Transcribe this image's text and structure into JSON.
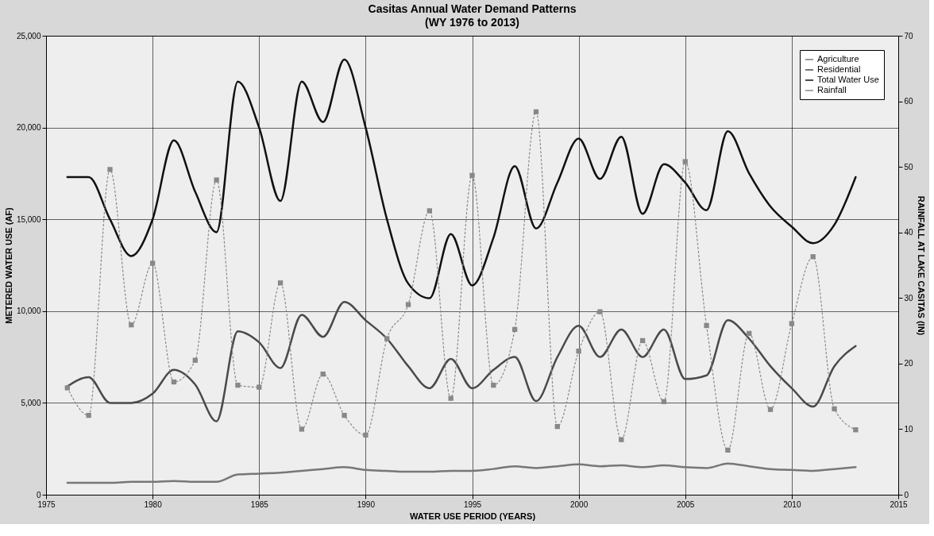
{
  "chart_data": {
    "type": "line",
    "title": "Casitas Annual Water Demand Patterns",
    "subtitle": "(WY 1976 to 2013)",
    "xlabel": "WATER USE PERIOD (YEARS)",
    "ylabel": "METERED WATER USE (AF)",
    "y2label": "RAINFALL AT LAKE CASITAS (IN)",
    "x": [
      1976,
      1977,
      1978,
      1979,
      1980,
      1981,
      1982,
      1983,
      1984,
      1985,
      1986,
      1987,
      1988,
      1989,
      1990,
      1991,
      1992,
      1993,
      1994,
      1995,
      1996,
      1997,
      1998,
      1999,
      2000,
      2001,
      2002,
      2003,
      2004,
      2005,
      2006,
      2007,
      2008,
      2009,
      2010,
      2011,
      2012,
      2013
    ],
    "series": [
      {
        "name": "Agriculture",
        "color": "#777777",
        "line_style": "solid",
        "marker": "none",
        "values": [
          650,
          650,
          650,
          700,
          700,
          750,
          700,
          700,
          1100,
          1150,
          1200,
          1300,
          1400,
          1500,
          1350,
          1300,
          1250,
          1250,
          1300,
          1300,
          1400,
          1550,
          1450,
          1550,
          1650,
          1550,
          1600,
          1500,
          1600,
          1500,
          1450,
          1700,
          1550,
          1400,
          1350,
          1300,
          1400,
          1500
        ]
      },
      {
        "name": "Residential",
        "color": "#4a4a4a",
        "line_style": "solid",
        "marker": "none",
        "values": [
          5900,
          6400,
          5000,
          5000,
          5500,
          6800,
          6000,
          4000,
          8900,
          8300,
          6900,
          9800,
          8600,
          10500,
          9500,
          8500,
          7000,
          5800,
          7400,
          5800,
          6800,
          7500,
          5100,
          7500,
          9200,
          7500,
          9000,
          7500,
          9000,
          6300,
          6500,
          9500,
          8500,
          7000,
          5800,
          4800,
          7000,
          8100
        ]
      },
      {
        "name": "Total Water Use",
        "color": "#111111",
        "line_style": "solid",
        "marker": "none",
        "values": [
          17300,
          17300,
          15000,
          13000,
          15000,
          19300,
          16500,
          14300,
          22500,
          20000,
          16000,
          22500,
          20300,
          23700,
          20000,
          15000,
          11500,
          10700,
          14200,
          11400,
          14000,
          17900,
          14500,
          17000,
          19400,
          17200,
          19500,
          15300,
          18000,
          17000,
          15500,
          19800,
          17500,
          15700,
          14600,
          13700,
          14700,
          17300
        ]
      },
      {
        "name": "Rainfall",
        "color": "#888888",
        "line_style": "dotted",
        "marker": "square",
        "axis": "y2",
        "values": [
          16.3,
          12.1,
          49.6,
          25.9,
          35.3,
          17.2,
          20.5,
          48,
          16.7,
          16.4,
          32.3,
          10,
          18.4,
          12.1,
          9.1,
          23.8,
          29,
          43.3,
          14.7,
          48.7,
          16.7,
          25.2,
          58.4,
          10.4,
          21.9,
          27.9,
          8.4,
          23.5,
          14.2,
          50.8,
          25.8,
          6.8,
          24.6,
          13,
          26.1,
          36.3,
          13.1,
          9.9
        ]
      }
    ],
    "xlim": [
      1975,
      2015
    ],
    "xticks": [
      1975,
      1980,
      1985,
      1990,
      1995,
      2000,
      2005,
      2010,
      2015
    ],
    "ylim": [
      0,
      25000
    ],
    "yticks": [
      {
        "value": 0,
        "label": "0"
      },
      {
        "value": 5000,
        "label": "5,000"
      },
      {
        "value": 10000,
        "label": "10,000"
      },
      {
        "value": 15000,
        "label": "15,000"
      },
      {
        "value": 20000,
        "label": "20,000"
      },
      {
        "value": 25000,
        "label": "25,000"
      }
    ],
    "y2lim": [
      0,
      70
    ],
    "y2ticks": [
      0,
      10,
      20,
      30,
      40,
      50,
      60,
      70
    ],
    "grid": true,
    "legend": "top right"
  }
}
